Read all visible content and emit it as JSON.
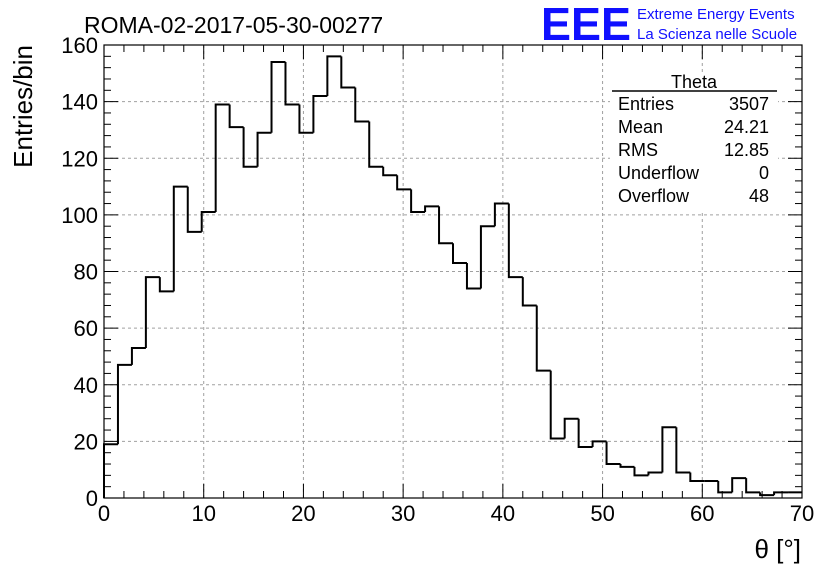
{
  "header": {
    "run_title": "ROMA-02-2017-05-30-00277"
  },
  "logo": {
    "letters": "EEE",
    "line1": "Extreme Energy Events",
    "line2": "La Scienza nelle Scuole",
    "color": "#1010ff"
  },
  "stats_box": {
    "name": "Theta",
    "rows": [
      {
        "label": "Entries",
        "value": "3507"
      },
      {
        "label": "Mean",
        "value": "24.21"
      },
      {
        "label": "RMS",
        "value": "12.85"
      },
      {
        "label": "Underflow",
        "value": "0"
      },
      {
        "label": "Overflow",
        "value": "48"
      }
    ]
  },
  "chart_data": {
    "type": "histogram",
    "xlabel": "θ [°]",
    "ylabel": "Entries/bin",
    "xlim": [
      0,
      70
    ],
    "ylim": [
      0,
      160
    ],
    "grid": true,
    "grid_style": "dashed",
    "line_color": "#000000",
    "bin_width": 1.4,
    "x_ticks": [
      0,
      10,
      20,
      30,
      40,
      50,
      60,
      70
    ],
    "y_ticks": [
      0,
      20,
      40,
      60,
      80,
      100,
      120,
      140,
      160
    ],
    "bin_edges_start": 0,
    "values": [
      19,
      47,
      53,
      78,
      73,
      110,
      94,
      101,
      139,
      131,
      117,
      129,
      154,
      139,
      129,
      142,
      156,
      145,
      133,
      117,
      114,
      109,
      101,
      103,
      90,
      83,
      74,
      96,
      104,
      78,
      68,
      45,
      21,
      28,
      18,
      20,
      12,
      11,
      8,
      9,
      25,
      9,
      6,
      6,
      2,
      7,
      2,
      1,
      2,
      2
    ]
  }
}
